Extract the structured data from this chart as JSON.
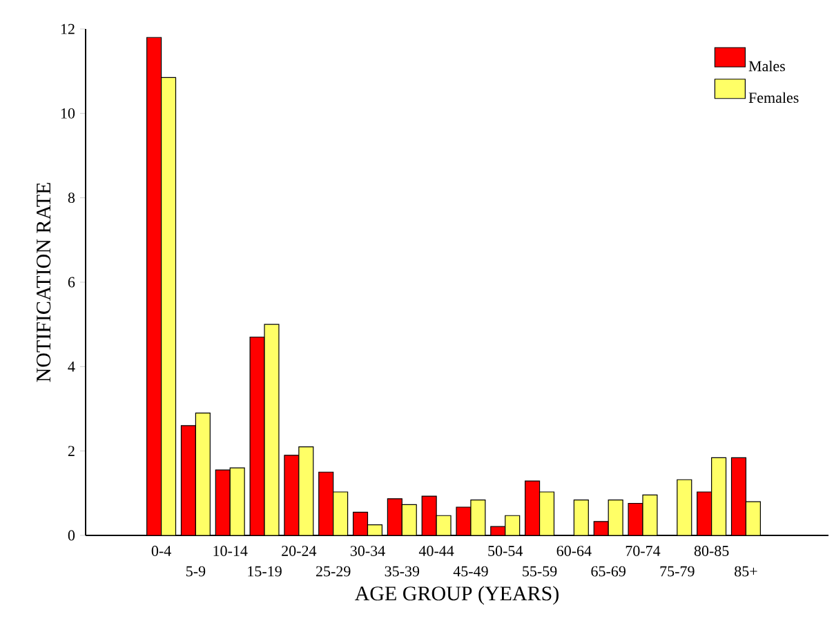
{
  "chart_data": {
    "type": "bar",
    "xlabel": "AGE GROUP (YEARS)",
    "ylabel": "NOTIFICATION RATE",
    "categories": [
      "0-4",
      "5-9",
      "10-14",
      "15-19",
      "20-24",
      "25-29",
      "30-34",
      "35-39",
      "40-44",
      "45-49",
      "50-54",
      "55-59",
      "60-64",
      "65-69",
      "70-74",
      "75-79",
      "80-85",
      "85+"
    ],
    "series": [
      {
        "name": "Males",
        "color": "#ff0000",
        "values": [
          11.8,
          2.6,
          1.55,
          4.7,
          1.9,
          1.5,
          0.55,
          0.87,
          0.93,
          0.67,
          0.21,
          1.29,
          0,
          0.33,
          0.76,
          0,
          1.03,
          1.84
        ]
      },
      {
        "name": "Females",
        "color": "#ffff66",
        "values": [
          10.85,
          2.9,
          1.6,
          5.0,
          2.1,
          1.03,
          0.25,
          0.73,
          0.47,
          0.84,
          0.47,
          1.03,
          0.84,
          0.84,
          0.96,
          1.32,
          1.84,
          0.8
        ]
      }
    ],
    "ylim": [
      0,
      12
    ],
    "yticks": [
      0,
      2,
      4,
      6,
      8,
      10,
      12
    ],
    "legend": "top right",
    "grid": false
  }
}
